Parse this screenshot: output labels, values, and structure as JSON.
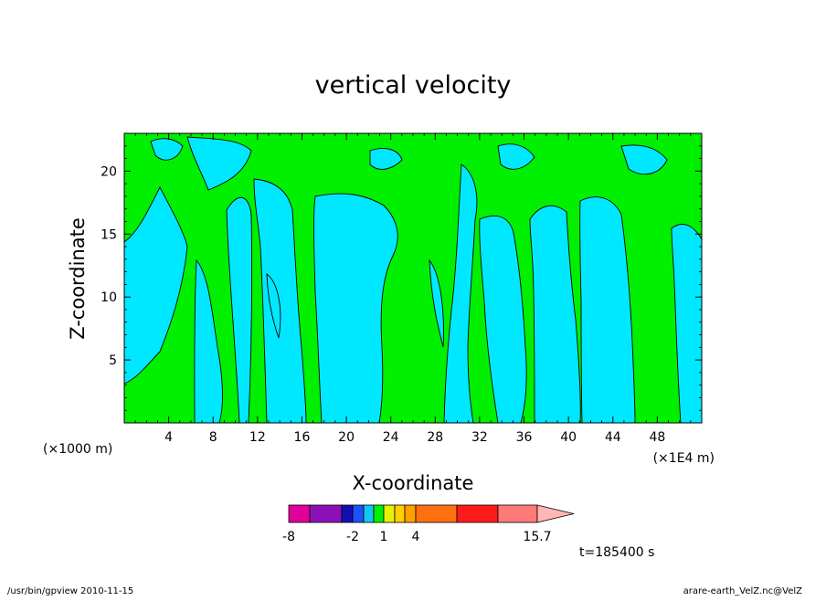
{
  "chart_data": {
    "type": "heatmap",
    "title": "vertical velocity",
    "xlabel": "X-coordinate",
    "ylabel": "Z-coordinate",
    "x_unit_left": "(×1000 m)",
    "x_unit_right": "(×1E4 m)",
    "xlim": [
      0,
      52
    ],
    "ylim": [
      0,
      23
    ],
    "x_ticks": [
      4,
      8,
      12,
      16,
      20,
      24,
      28,
      32,
      36,
      40,
      44,
      48
    ],
    "y_ticks": [
      5,
      10,
      15,
      20
    ],
    "time_label": "t=185400 s",
    "colorbar": {
      "labels": [
        {
          "text": "-8",
          "value": -8
        },
        {
          "text": "-2",
          "value": -2
        },
        {
          "text": "1",
          "value": 1
        },
        {
          "text": "4",
          "value": 4
        },
        {
          "text": "15.7",
          "value": 15.7
        }
      ],
      "bins": [
        {
          "color": "#e0009a"
        },
        {
          "color": "#8c10b8"
        },
        {
          "color": "#1010b0"
        },
        {
          "color": "#1e50ff"
        },
        {
          "color": "#10c8f0"
        },
        {
          "color": "#00f000"
        },
        {
          "color": "#e6f000"
        },
        {
          "color": "#ffd000"
        },
        {
          "color": "#ffa000"
        },
        {
          "color": "#ff7010"
        },
        {
          "color": "#ff1a1a"
        },
        {
          "color": "#ff7a7a"
        }
      ],
      "extension_color": "#ffb6b6"
    },
    "field_colors": {
      "positive": "#00f000",
      "negative": "#00e8ff"
    }
  },
  "footer": {
    "left": "/usr/bin/gpview   2010-11-15",
    "right": "arare-earth_VelZ.nc@VelZ"
  }
}
